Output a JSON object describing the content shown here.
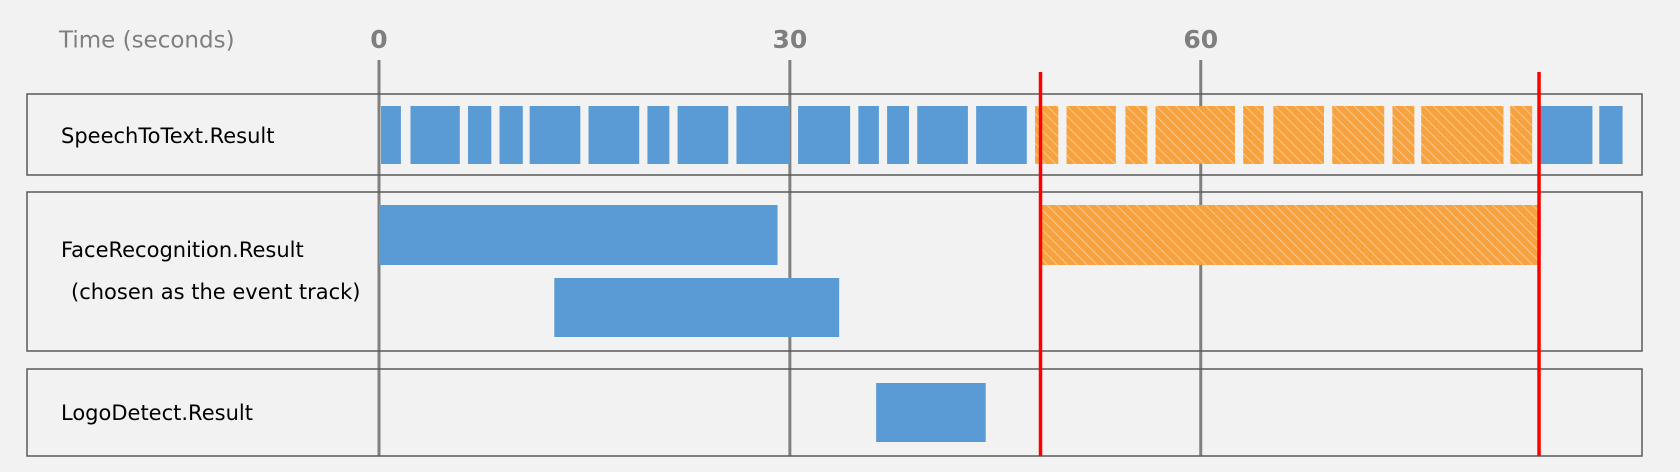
{
  "chart_data": {
    "type": "timeline",
    "x_label": "Time (seconds)",
    "xlim": [
      0,
      92
    ],
    "xticks": [
      0,
      30,
      60
    ],
    "color": "#5b9bd5",
    "highlight_color": "#f7a23e",
    "marker_color": "#ff0000",
    "markers": [
      48.3,
      84.7
    ],
    "tracks": [
      {
        "name": "SpeechToText.Result",
        "segments": [
          {
            "start": 0.15,
            "end": 1.6
          },
          {
            "start": 2.3,
            "end": 5.9
          },
          {
            "start": 6.5,
            "end": 8.2
          },
          {
            "start": 8.8,
            "end": 10.5
          },
          {
            "start": 11.0,
            "end": 14.7
          },
          {
            "start": 15.3,
            "end": 19.0
          },
          {
            "start": 19.6,
            "end": 21.2
          },
          {
            "start": 21.8,
            "end": 25.5
          },
          {
            "start": 26.1,
            "end": 30.0
          },
          {
            "start": 30.6,
            "end": 34.4
          },
          {
            "start": 35.0,
            "end": 36.5
          },
          {
            "start": 37.1,
            "end": 38.7
          },
          {
            "start": 39.3,
            "end": 43.0
          },
          {
            "start": 43.6,
            "end": 47.3
          },
          {
            "start": 47.9,
            "end": 49.6
          },
          {
            "start": 50.2,
            "end": 53.8
          },
          {
            "start": 54.5,
            "end": 56.1
          },
          {
            "start": 56.7,
            "end": 62.5
          },
          {
            "start": 63.1,
            "end": 64.6
          },
          {
            "start": 65.3,
            "end": 69.0
          },
          {
            "start": 69.6,
            "end": 73.4
          },
          {
            "start": 74.0,
            "end": 75.6
          },
          {
            "start": 76.1,
            "end": 82.1
          },
          {
            "start": 82.6,
            "end": 84.2
          },
          {
            "start": 84.8,
            "end": 88.6
          },
          {
            "start": 89.1,
            "end": 90.8
          }
        ]
      },
      {
        "name": "FaceRecognition.Result",
        "note": "(chosen as the event track)",
        "segments": [
          {
            "start": 0,
            "end": 29.1
          },
          {
            "start": 12.8,
            "end": 33.6
          },
          {
            "start": 48.4,
            "end": 84.6
          }
        ]
      },
      {
        "name": "LogoDetect.Result",
        "segments": [
          {
            "start": 36.3,
            "end": 44.3
          }
        ]
      }
    ]
  }
}
